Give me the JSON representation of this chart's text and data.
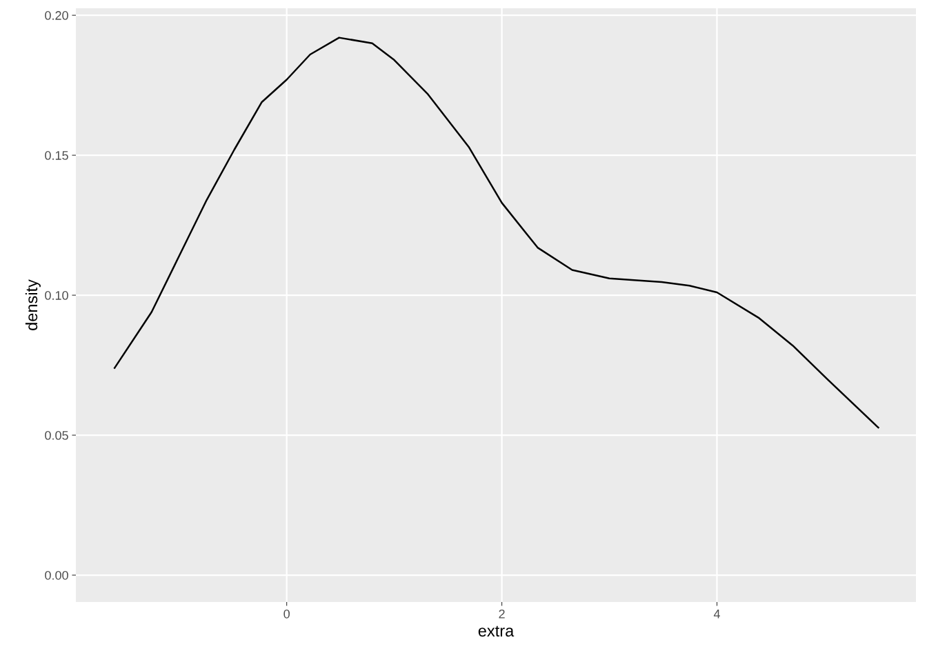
{
  "chart_data": {
    "type": "line",
    "xlabel": "extra",
    "ylabel": "density",
    "x": [
      -1.6,
      -1.256,
      -1.0,
      -0.744,
      -0.487,
      -0.231,
      0,
      0.218,
      0.487,
      0.795,
      1.0,
      1.308,
      1.692,
      2.0,
      2.333,
      2.654,
      3.0,
      3.487,
      3.744,
      4.0,
      4.385,
      4.705,
      5.026,
      5.5
    ],
    "series": [
      {
        "color": "#000000",
        "values": [
          0.074,
          0.094,
          0.114,
          0.134,
          0.152,
          0.169,
          0.177,
          0.186,
          0.192,
          0.19,
          0.184,
          0.172,
          0.153,
          0.133,
          0.117,
          0.109,
          0.106,
          0.1047,
          0.1034,
          0.101,
          0.092,
          0.082,
          0.07,
          0.0527
        ]
      }
    ],
    "xlim": [
      -1.96,
      5.85
    ],
    "ylim": [
      -0.0096,
      0.2025
    ],
    "xticks": [
      0,
      2,
      4
    ],
    "yticks": [
      {
        "value": 0,
        "label": "0.00"
      },
      {
        "value": 0.05,
        "label": "0.05"
      },
      {
        "value": 0.1,
        "label": "0.10"
      },
      {
        "value": 0.15,
        "label": "0.15"
      },
      {
        "value": 0.2,
        "label": "0.20"
      }
    ],
    "grid": true,
    "marker": "none",
    "line_style": "solid"
  }
}
